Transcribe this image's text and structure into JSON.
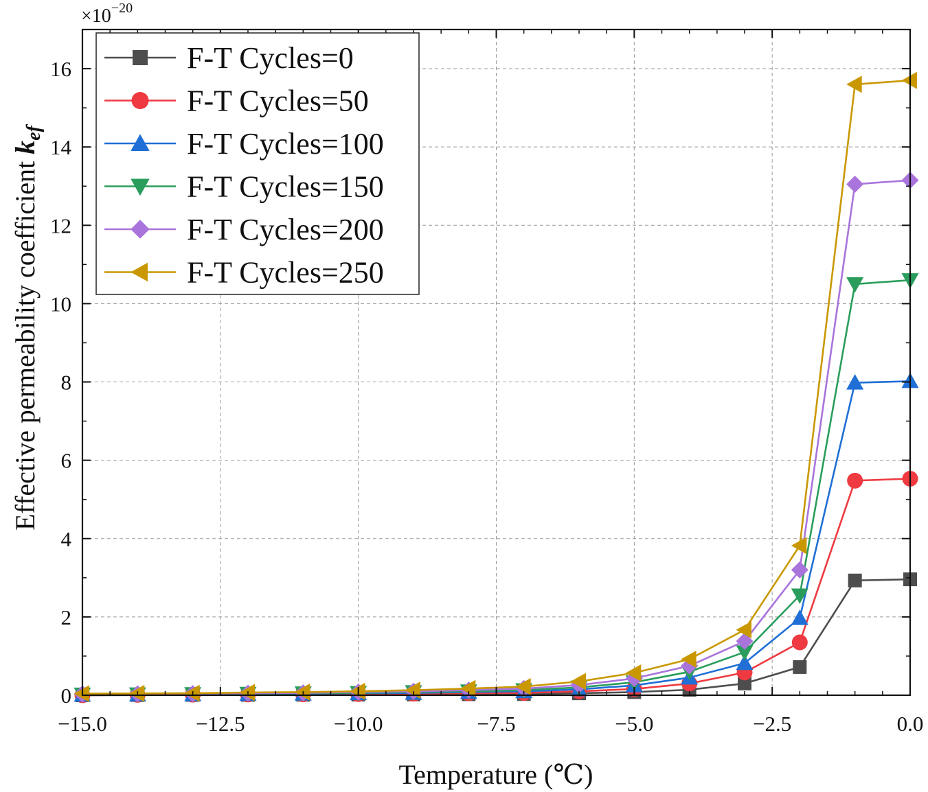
{
  "chart_data": {
    "type": "line",
    "title": "",
    "xlabel": "Temperature (℃)",
    "ylabel_main": "Effective permeability coefficient ",
    "ylabel_symbol": "k",
    "ylabel_subscript": "ef",
    "y_multiplier_base": "×10",
    "y_multiplier_exponent": "−20",
    "xlim": [
      -15,
      0
    ],
    "ylim": [
      0,
      17
    ],
    "xticks": [
      -15,
      -12.5,
      -10,
      -7.5,
      -5,
      -2.5,
      0
    ],
    "xtick_labels": [
      "−15.0",
      "−12.5",
      "−10.0",
      "−7.5",
      "−5.0",
      "−2.5",
      "0.0"
    ],
    "yticks": [
      0,
      2,
      4,
      6,
      8,
      10,
      12,
      14,
      16
    ],
    "ytick_labels": [
      "0",
      "2",
      "4",
      "6",
      "8",
      "10",
      "12",
      "14",
      "16"
    ],
    "grid": true,
    "legend_position": "top-left",
    "x": [
      -15,
      -14,
      -13,
      -12,
      -11,
      -10,
      -9,
      -8,
      -7,
      -6,
      -5,
      -4,
      -3,
      -2,
      -1,
      0
    ],
    "series": [
      {
        "name": "F-T Cycles=0",
        "color": "#4d4d4d",
        "marker": "square",
        "values": [
          0.0,
          0.005,
          0.008,
          0.01,
          0.012,
          0.015,
          0.02,
          0.025,
          0.03,
          0.05,
          0.08,
          0.14,
          0.3,
          0.72,
          2.93,
          2.96
        ]
      },
      {
        "name": "F-T Cycles=50",
        "color": "#ee3a40",
        "marker": "circle",
        "values": [
          0.0,
          0.01,
          0.015,
          0.02,
          0.025,
          0.03,
          0.04,
          0.05,
          0.06,
          0.1,
          0.16,
          0.3,
          0.58,
          1.35,
          5.48,
          5.53
        ]
      },
      {
        "name": "F-T Cycles=100",
        "color": "#1f6fd6",
        "marker": "triangle-up",
        "values": [
          0.01,
          0.015,
          0.02,
          0.03,
          0.04,
          0.05,
          0.06,
          0.08,
          0.1,
          0.15,
          0.25,
          0.45,
          0.82,
          1.97,
          7.98,
          8.02
        ]
      },
      {
        "name": "F-T Cycles=150",
        "color": "#2a9d5c",
        "marker": "triangle-down",
        "values": [
          0.02,
          0.025,
          0.03,
          0.04,
          0.05,
          0.06,
          0.08,
          0.1,
          0.13,
          0.2,
          0.33,
          0.6,
          1.1,
          2.55,
          10.5,
          10.6
        ]
      },
      {
        "name": "F-T Cycles=200",
        "color": "#a974dc",
        "marker": "diamond",
        "values": [
          0.03,
          0.035,
          0.04,
          0.05,
          0.06,
          0.08,
          0.1,
          0.13,
          0.17,
          0.26,
          0.43,
          0.75,
          1.38,
          3.2,
          13.05,
          13.15
        ]
      },
      {
        "name": "F-T Cycles=250",
        "color": "#c99800",
        "marker": "triangle-left",
        "values": [
          0.04,
          0.045,
          0.05,
          0.07,
          0.08,
          0.1,
          0.13,
          0.17,
          0.22,
          0.35,
          0.57,
          0.92,
          1.67,
          3.82,
          15.6,
          15.7
        ]
      }
    ]
  }
}
